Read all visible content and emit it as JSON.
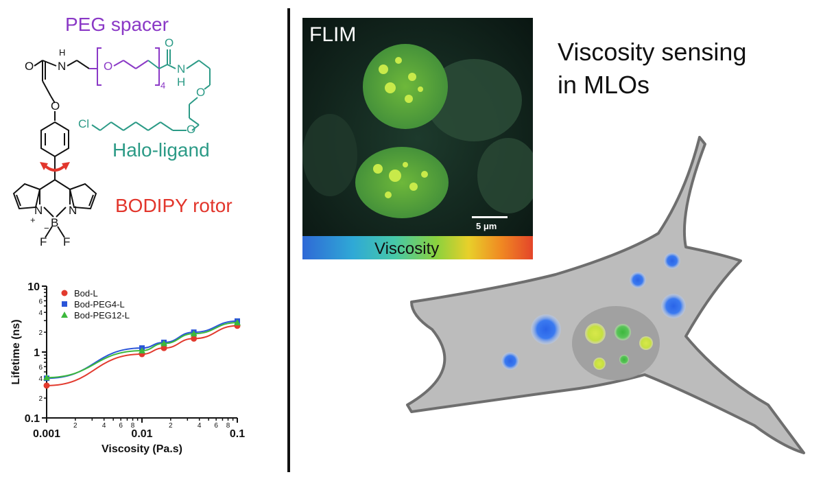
{
  "labels": {
    "peg_spacer": "PEG spacer",
    "halo_ligand": "Halo-ligand",
    "bodipy_rotor": "BODIPY rotor"
  },
  "atoms": {
    "o_amide": "O",
    "nh_h": "H",
    "nh_n": "N",
    "o_peg": "O",
    "sub4": "4",
    "o_amide2": "O",
    "n2": "N",
    "h2": "H",
    "o_halo1": "O",
    "o_halo2": "O",
    "cl": "Cl",
    "o_phenoxy": "O",
    "n_left": "N",
    "n_right": "N",
    "b": "B",
    "plus": "+",
    "minus": "−",
    "f1": "F",
    "f2": "F"
  },
  "flim": {
    "title": "FLIM",
    "scale": "5 μm",
    "colorbar_label": "Viscosity"
  },
  "headline": {
    "line1": "Viscosity sensing",
    "line2": "in MLOs"
  },
  "chart_data": {
    "type": "scatter",
    "xscale": "log",
    "yscale": "log",
    "xlabel": "Viscosity (Pa.s)",
    "ylabel": "Lifetime (ns)",
    "xlim": [
      0.001,
      0.1
    ],
    "ylim": [
      0.1,
      10
    ],
    "x_major_ticks": [
      "0.001",
      "0.01",
      "0.1"
    ],
    "x_minor_labels": [
      "2",
      "4",
      "6",
      "8",
      "2",
      "4",
      "6",
      "8"
    ],
    "y_major_ticks": [
      "0.1",
      "1",
      "10"
    ],
    "y_minor_labels": [
      "2",
      "4",
      "6",
      "2",
      "4",
      "6",
      "2",
      "4",
      "6"
    ],
    "legend_position": "top-left",
    "series": [
      {
        "name": "Bod-L",
        "color": "#e23a2e",
        "marker": "circle",
        "x": [
          0.001,
          0.01,
          0.017,
          0.035,
          0.1
        ],
        "y": [
          0.31,
          0.93,
          1.15,
          1.6,
          2.5
        ]
      },
      {
        "name": "Bod-PEG4-L",
        "color": "#2a55d8",
        "marker": "square",
        "x": [
          0.001,
          0.01,
          0.017,
          0.035,
          0.1
        ],
        "y": [
          0.4,
          1.15,
          1.4,
          2.0,
          2.95
        ]
      },
      {
        "name": "Bod-PEG12-L",
        "color": "#3cb83c",
        "marker": "triangle",
        "x": [
          0.001,
          0.01,
          0.017,
          0.035,
          0.1
        ],
        "y": [
          0.41,
          1.05,
          1.35,
          1.9,
          2.8
        ]
      }
    ]
  }
}
